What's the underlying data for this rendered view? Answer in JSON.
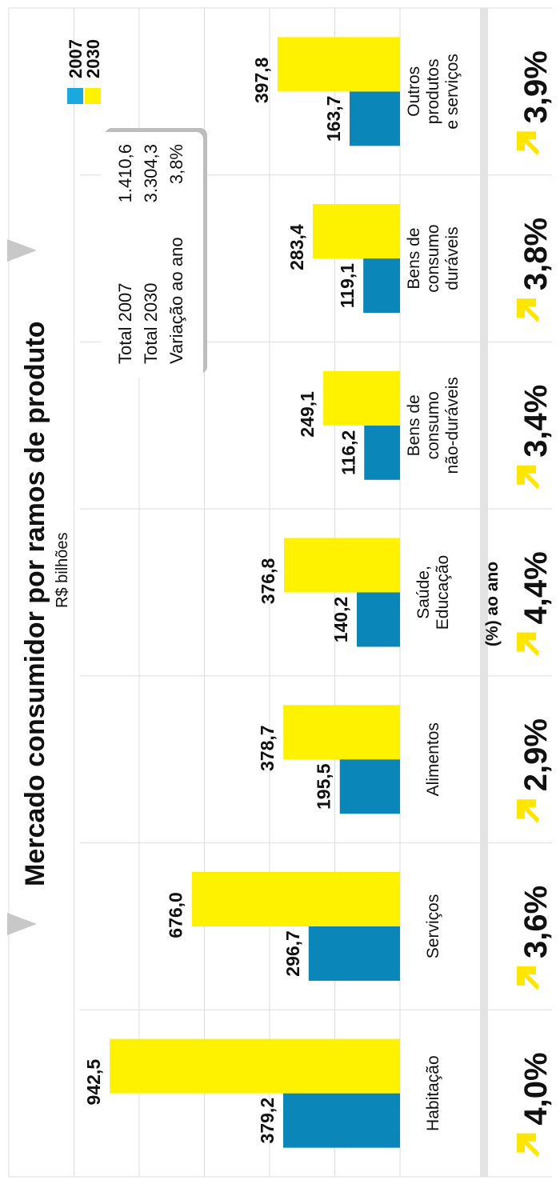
{
  "chart_data": {
    "type": "bar",
    "title": "Mercado consumidor por ramos de produto",
    "subtitle": "R$ bilhões",
    "categories": [
      [
        "Habitação"
      ],
      [
        "Serviços"
      ],
      [
        "Alimentos"
      ],
      [
        "Saúde,",
        "Educação"
      ],
      [
        "Bens de",
        "consumo",
        "não-duráveis"
      ],
      [
        "Bens de",
        "consumo",
        "duráveis"
      ],
      [
        "Outros",
        "produtos",
        "e serviços"
      ]
    ],
    "series": [
      {
        "name": "2007",
        "values": [
          379.2,
          296.7,
          195.5,
          140.2,
          116.2,
          119.1,
          163.7
        ],
        "labels": [
          "379,2",
          "296,7",
          "195,5",
          "140,2",
          "116,2",
          "119,1",
          "163,7"
        ]
      },
      {
        "name": "2030",
        "values": [
          942.5,
          676.0,
          378.7,
          376.8,
          249.1,
          283.4,
          397.8
        ],
        "labels": [
          "942,5",
          "676,0",
          "378,7",
          "376,8",
          "249,1",
          "283,4",
          "397,8"
        ]
      }
    ],
    "ylim": [
      0,
      1000
    ],
    "growth_caption": "(%) ao ano",
    "growth": [
      "4,0%",
      "3,6%",
      "2,9%",
      "4,4%",
      "3,4%",
      "3,8%",
      "3,9%"
    ],
    "colors": {
      "2007": "#0B86B8",
      "2030": "#FFF200",
      "legend_2007": "#19A8E0",
      "arrow": "#FFE600",
      "band": "#E3E3E3",
      "grid": "#DDDDDD",
      "marker": "#C8C8C8"
    },
    "summary": {
      "rows": [
        {
          "label": "Total 2007",
          "value": "1.410,6"
        },
        {
          "label": "Total 2030",
          "value": "3.304,3"
        },
        {
          "label": "Variação ao ano",
          "value": "3,8%"
        }
      ]
    }
  }
}
